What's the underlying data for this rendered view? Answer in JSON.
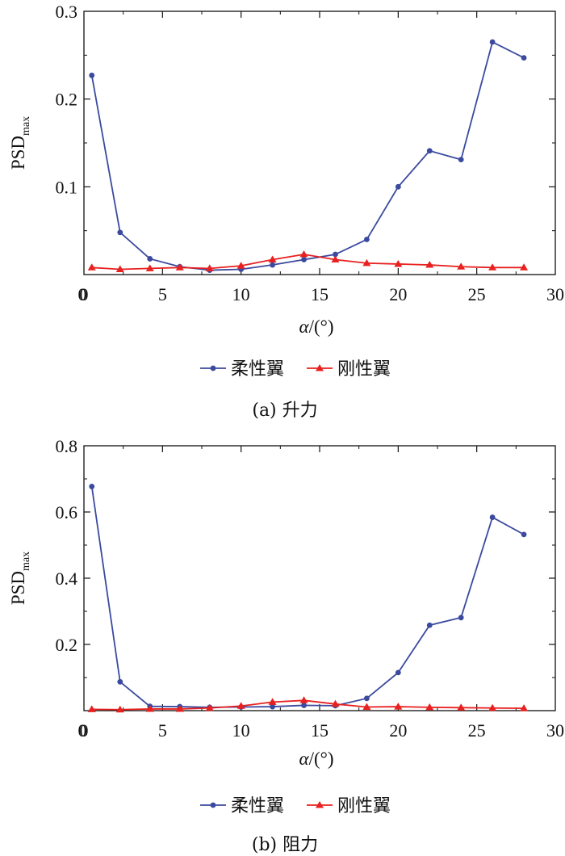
{
  "chart_data": [
    {
      "type": "line",
      "caption": "(a) 升力",
      "xlabel_var": "α",
      "xlabel_unit": "/(°)",
      "ylabel_main": "PSD",
      "ylabel_sub": "max",
      "xlim": [
        0,
        30
      ],
      "ylim": [
        0,
        0.3
      ],
      "xticks": [
        "0",
        "5",
        "10",
        "15",
        "20",
        "25",
        "30"
      ],
      "yticks": [
        "0.1",
        "0.2",
        "0.3"
      ],
      "ytick_values": [
        0.1,
        0.2,
        0.3
      ],
      "legend_position": "bottom",
      "grid": false,
      "x": [
        0.5,
        2.3,
        4.2,
        6.1,
        8.0,
        10.0,
        12.0,
        14.0,
        16.0,
        18.0,
        20.0,
        22.0,
        24.0,
        26.0,
        28.0
      ],
      "series": [
        {
          "name": "柔性翼",
          "color": "#3b4a9e",
          "marker": "circle",
          "values": [
            0.227,
            0.048,
            0.018,
            0.009,
            0.005,
            0.006,
            0.011,
            0.017,
            0.023,
            0.04,
            0.1,
            0.141,
            0.131,
            0.265,
            0.247
          ]
        },
        {
          "name": "刚性翼",
          "color": "#e8201f",
          "marker": "triangle",
          "values": [
            0.008,
            0.006,
            0.007,
            0.008,
            0.007,
            0.01,
            0.017,
            0.023,
            0.017,
            0.013,
            0.012,
            0.011,
            0.009,
            0.008,
            0.008
          ]
        }
      ]
    },
    {
      "type": "line",
      "caption": "(b) 阻力",
      "xlabel_var": "α",
      "xlabel_unit": "/(°)",
      "ylabel_main": "PSD",
      "ylabel_sub": "max",
      "xlim": [
        0,
        30
      ],
      "ylim": [
        0,
        0.8
      ],
      "xticks": [
        "0",
        "5",
        "10",
        "15",
        "20",
        "25",
        "30"
      ],
      "yticks": [
        "0.2",
        "0.4",
        "0.6",
        "0.8"
      ],
      "ytick_values": [
        0.2,
        0.4,
        0.6,
        0.8
      ],
      "legend_position": "bottom",
      "grid": false,
      "x": [
        0.5,
        2.3,
        4.2,
        6.1,
        8.0,
        10.0,
        12.0,
        14.0,
        16.0,
        18.0,
        20.0,
        22.0,
        24.0,
        26.0,
        28.0
      ],
      "series": [
        {
          "name": "柔性翼",
          "color": "#3b4a9e",
          "marker": "circle",
          "values": [
            0.677,
            0.087,
            0.013,
            0.012,
            0.01,
            0.011,
            0.012,
            0.016,
            0.015,
            0.037,
            0.115,
            0.258,
            0.281,
            0.584,
            0.532
          ]
        },
        {
          "name": "刚性翼",
          "color": "#e8201f",
          "marker": "triangle",
          "values": [
            0.004,
            0.003,
            0.005,
            0.005,
            0.008,
            0.014,
            0.026,
            0.031,
            0.02,
            0.011,
            0.012,
            0.01,
            0.009,
            0.008,
            0.007
          ]
        }
      ]
    }
  ]
}
